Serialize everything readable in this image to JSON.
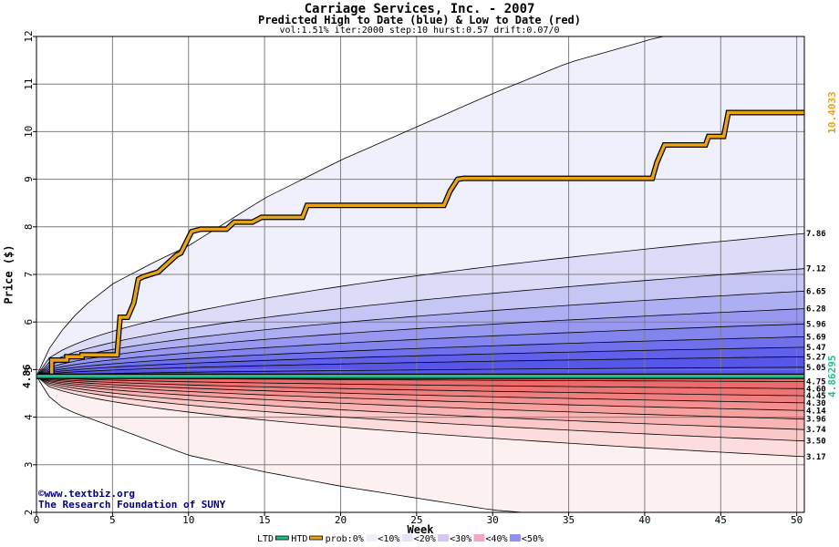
{
  "title": "Carriage Services, Inc. - 2007",
  "subtitle": "Predicted High to Date (blue) &  Low to Date (red)",
  "params": "vol:1.51% iter:2000 step:10 hurst:0.57 drift:0.07/0",
  "watermark_line1": "©www.textbiz.org",
  "watermark_line2": "The Research Foundation of SUNY",
  "legend": {
    "ltd": "LTD",
    "htd": "HTD",
    "prob": "prob:0%",
    "bins": [
      "<10%",
      "<20%",
      "<30%",
      "<40%",
      "<50%"
    ]
  },
  "chart_data": {
    "type": "area",
    "title": "Carriage Services, Inc. - 2007",
    "subtitle": "Predicted High to Date (blue) &  Low to Date (red)",
    "xlabel": "Week",
    "ylabel": "Price ($)",
    "xlim": [
      0,
      50.5
    ],
    "ylim": [
      2,
      12
    ],
    "xticks": [
      0,
      5,
      10,
      15,
      20,
      25,
      30,
      35,
      40,
      45,
      50
    ],
    "yticks": [
      2,
      3,
      4,
      5,
      6,
      7,
      8,
      9,
      10,
      11,
      12
    ],
    "grid": true,
    "start_price": 4.86,
    "start_label": "4.86",
    "high_envelope": {
      "x": [
        0,
        1,
        2,
        3,
        5,
        8,
        10,
        15,
        20,
        25,
        30,
        35,
        40,
        41
      ],
      "y": [
        4.86,
        5.55,
        5.95,
        6.3,
        6.8,
        7.3,
        7.6,
        8.6,
        9.4,
        10.1,
        10.8,
        11.45,
        11.9,
        12.0
      ]
    },
    "low_envelope": {
      "x": [
        0,
        1,
        2,
        5,
        10,
        15,
        20,
        25,
        30,
        32
      ],
      "y": [
        4.86,
        4.35,
        4.15,
        3.8,
        3.2,
        2.85,
        2.55,
        2.3,
        2.05,
        2.0
      ]
    },
    "high_quantiles": [
      {
        "label": "7.86",
        "end": 7.86
      },
      {
        "label": "7.12",
        "end": 7.12
      },
      {
        "label": "6.65",
        "end": 6.65
      },
      {
        "label": "6.28",
        "end": 6.28
      },
      {
        "label": "5.96",
        "end": 5.96
      },
      {
        "label": "5.69",
        "end": 5.69
      },
      {
        "label": "5.47",
        "end": 5.47
      },
      {
        "label": "5.27",
        "end": 5.27
      },
      {
        "label": "5.05",
        "end": 5.05
      }
    ],
    "low_quantiles": [
      {
        "label": "4.75",
        "end": 4.75
      },
      {
        "label": "4.60",
        "end": 4.6
      },
      {
        "label": "4.45",
        "end": 4.45
      },
      {
        "label": "4.30",
        "end": 4.3
      },
      {
        "label": "4.14",
        "end": 4.14
      },
      {
        "label": "3.96",
        "end": 3.96
      },
      {
        "label": "3.74",
        "end": 3.74
      },
      {
        "label": "3.50",
        "end": 3.5
      },
      {
        "label": "3.17",
        "end": 3.17
      }
    ],
    "series": [
      {
        "name": "HTD",
        "color": "#e8a317",
        "end_label": "10.4033",
        "x": [
          0,
          1,
          1,
          2,
          2,
          3,
          3,
          5.3,
          5.5,
          6,
          6.4,
          6.7,
          7,
          7.5,
          8,
          9.2,
          9.5,
          10.2,
          10.8,
          12.5,
          13,
          14.2,
          14.8,
          17.5,
          17.8,
          26.8,
          27.2,
          27.7,
          28.1,
          40.5,
          40.8,
          41.3,
          44,
          44.2,
          45.2,
          45.5,
          50.5
        ],
        "y": [
          4.86,
          4.86,
          5.2,
          5.2,
          5.27,
          5.27,
          5.31,
          5.31,
          6.1,
          6.1,
          6.4,
          6.9,
          6.95,
          7.0,
          7.05,
          7.4,
          7.45,
          7.9,
          7.95,
          7.95,
          8.1,
          8.1,
          8.2,
          8.2,
          8.45,
          8.45,
          8.75,
          9.0,
          9.02,
          9.02,
          9.35,
          9.72,
          9.72,
          9.9,
          9.9,
          10.4,
          10.4
        ]
      },
      {
        "name": "LTD",
        "color": "#1fbf8f",
        "end_label": "4.86295",
        "x": [
          0,
          50.5
        ],
        "y": [
          4.86,
          4.86
        ]
      }
    ],
    "colors": {
      "outer": "#f0f0fc",
      "blue_ramp": [
        "#dcdcf8",
        "#c6c6f4",
        "#aeaef2",
        "#9898f0",
        "#8484ee",
        "#7070ec",
        "#6060ea",
        "#5656e8"
      ],
      "red_ramp": [
        "#fcdcdc",
        "#fac8c8",
        "#f8b4b4",
        "#f6a0a0",
        "#f49090",
        "#f08080",
        "#ee7474",
        "#ec6c6c"
      ],
      "low_outer": "#fdf0f0",
      "htd": "#e8a317",
      "ltd": "#1fbf8f",
      "title_blue": "#000080"
    }
  }
}
